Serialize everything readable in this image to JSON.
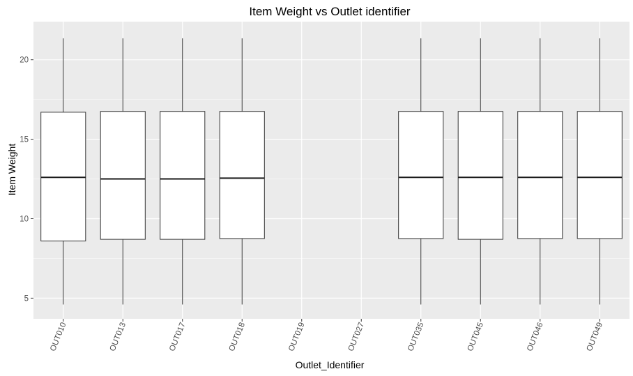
{
  "chart_data": {
    "type": "box",
    "title": "Item Weight vs Outlet identifier",
    "xlabel": "Outlet_Identifier",
    "ylabel": "Item Weight",
    "ylim": [
      3.7,
      22.4
    ],
    "yticks": [
      5,
      10,
      15,
      20
    ],
    "grid": true,
    "categories": [
      "OUT010",
      "OUT013",
      "OUT017",
      "OUT018",
      "OUT019",
      "OUT027",
      "OUT035",
      "OUT045",
      "OUT046",
      "OUT049"
    ],
    "boxes": [
      {
        "category": "OUT010",
        "min": 4.6,
        "q1": 8.6,
        "median": 12.6,
        "q3": 16.7,
        "max": 21.35
      },
      {
        "category": "OUT013",
        "min": 4.6,
        "q1": 8.7,
        "median": 12.5,
        "q3": 16.75,
        "max": 21.35
      },
      {
        "category": "OUT017",
        "min": 4.6,
        "q1": 8.7,
        "median": 12.5,
        "q3": 16.75,
        "max": 21.35
      },
      {
        "category": "OUT018",
        "min": 4.6,
        "q1": 8.75,
        "median": 12.55,
        "q3": 16.75,
        "max": 21.35
      },
      null,
      null,
      {
        "category": "OUT035",
        "min": 4.6,
        "q1": 8.75,
        "median": 12.6,
        "q3": 16.75,
        "max": 21.35
      },
      {
        "category": "OUT045",
        "min": 4.6,
        "q1": 8.7,
        "median": 12.6,
        "q3": 16.75,
        "max": 21.35
      },
      {
        "category": "OUT046",
        "min": 4.6,
        "q1": 8.75,
        "median": 12.6,
        "q3": 16.75,
        "max": 21.35
      },
      {
        "category": "OUT049",
        "min": 4.6,
        "q1": 8.75,
        "median": 12.6,
        "q3": 16.75,
        "max": 21.35
      }
    ],
    "colors": {
      "panel": "#ebebeb",
      "grid_major": "#ffffff",
      "box_fill": "#ffffff",
      "box_stroke": "#333333",
      "tick": "#4d4d4d"
    }
  }
}
